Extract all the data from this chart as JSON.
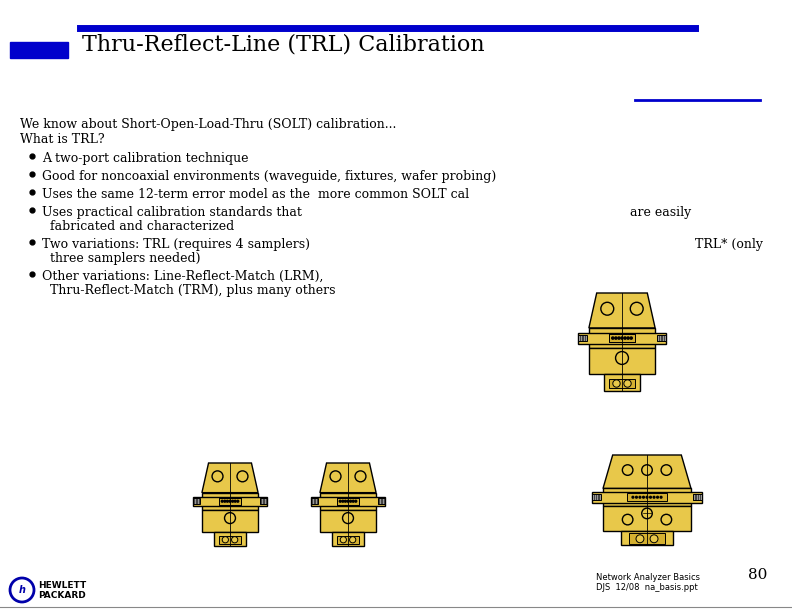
{
  "title": "Thru-Reflect-Line (TRL) Calibration",
  "background_color": "#ffffff",
  "title_color": "#000000",
  "accent_color": "#0000cc",
  "title_fontsize": 16,
  "text_fontsize": 9,
  "intro_line1": "We know about Short-Open-Load-Thru (SOLT) calibration...",
  "intro_line2": "What is TRL?",
  "bullet_texts": [
    "A two-port calibration technique",
    "Good for noncoaxial environments (waveguide, fixtures, wafer probing)",
    "Uses the same 12-term error model as the  more common SOLT cal",
    "Uses practical calibration standards that",
    "fabricated and characterized",
    "Two variations: TRL (requires 4 samplers)",
    "three samplers needed)",
    "Other variations: Line-Reflect-Match (LRM),",
    "Thru-Reflect-Match (TRM), plus many others"
  ],
  "are_easily_text": "are easily",
  "trl_star_text": "TRL* (only",
  "footer_left1": "HEWLETT",
  "footer_left2": "PACKARD",
  "footer_right": "Network Analyzer Basics\nDJS  12/08  na_basis.ppt",
  "page_number": "80",
  "device_color": "#e8c84a",
  "device_color2": "#d4b030",
  "device_outline": "#000000"
}
